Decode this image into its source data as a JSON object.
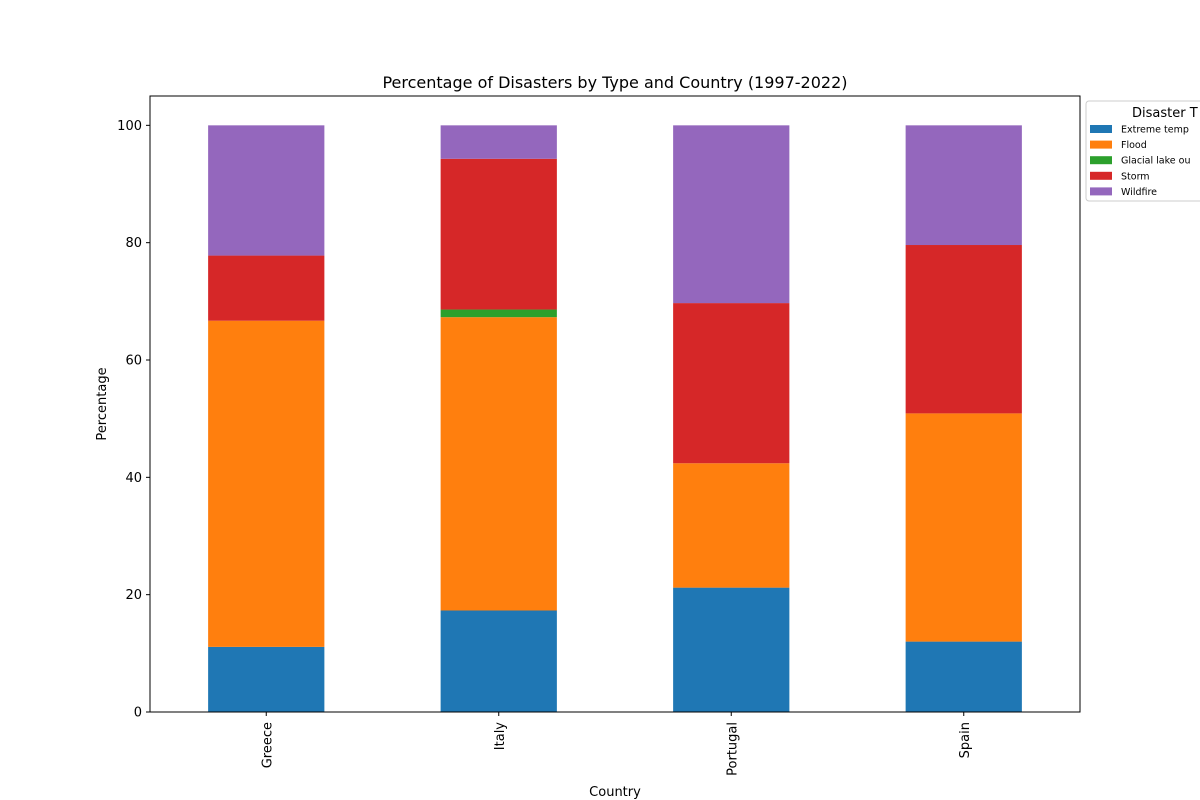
{
  "chart_data": {
    "type": "bar",
    "stacked": true,
    "title": "Percentage of Disasters by Type and Country (1997-2022)",
    "xlabel": "Country",
    "ylabel": "Percentage",
    "categories": [
      "Greece",
      "Italy",
      "Portugal",
      "Spain"
    ],
    "ylim": [
      0,
      105
    ],
    "yticks": [
      0,
      20,
      40,
      60,
      80,
      100
    ],
    "grid": false,
    "legend": {
      "title": "Disaster T",
      "placement": "right, outside top",
      "entries": [
        "Extreme temp",
        "Flood",
        "Glacial lake ou",
        "Storm",
        "Wildfire"
      ]
    },
    "series": [
      {
        "name": "Extreme temperature",
        "color": "#1f77b4",
        "values": [
          11.1,
          17.3,
          21.2,
          12.0
        ]
      },
      {
        "name": "Flood",
        "color": "#ff7f0e",
        "values": [
          55.6,
          50.0,
          21.2,
          38.9
        ]
      },
      {
        "name": "Glacial lake outburst",
        "color": "#2ca02c",
        "values": [
          0,
          1.3,
          0,
          0
        ]
      },
      {
        "name": "Storm",
        "color": "#d62728",
        "values": [
          11.1,
          25.7,
          27.3,
          28.7
        ]
      },
      {
        "name": "Wildfire",
        "color": "#9467bd",
        "values": [
          22.2,
          5.7,
          30.3,
          20.4
        ]
      }
    ]
  }
}
